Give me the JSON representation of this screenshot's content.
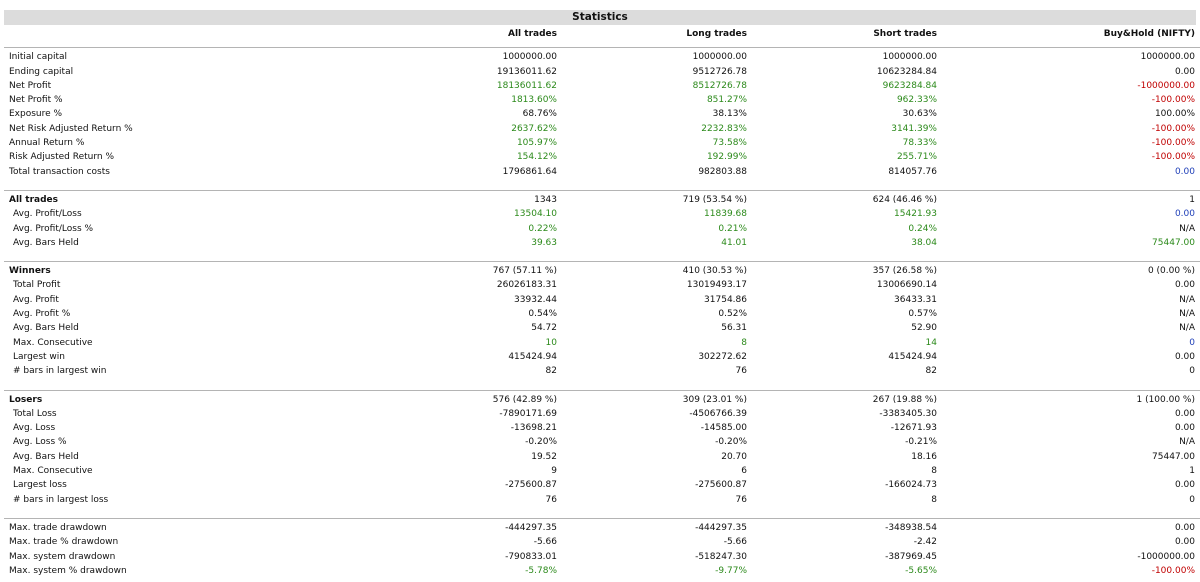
{
  "title": "Statistics",
  "columns": [
    "All trades",
    "Long trades",
    "Short trades",
    "Buy&Hold (NIFTY)"
  ],
  "colors": {
    "positive": "#2c8a1b",
    "negative": "#c00000",
    "neutral": "#1f3fb8",
    "default": "#111111"
  },
  "sections": [
    {
      "rows": [
        {
          "label": "Initial capital",
          "values": [
            "1000000.00",
            "1000000.00",
            "1000000.00",
            "1000000.00"
          ],
          "colors": [
            "",
            "",
            "",
            ""
          ]
        },
        {
          "label": "Ending capital",
          "values": [
            "19136011.62",
            "9512726.78",
            "10623284.84",
            "0.00"
          ],
          "colors": [
            "",
            "",
            "",
            ""
          ]
        },
        {
          "label": "Net Profit",
          "values": [
            "18136011.62",
            "8512726.78",
            "9623284.84",
            "-1000000.00"
          ],
          "colors": [
            "g",
            "g",
            "g",
            "r"
          ]
        },
        {
          "label": "Net Profit %",
          "values": [
            "1813.60%",
            "851.27%",
            "962.33%",
            "-100.00%"
          ],
          "colors": [
            "g",
            "g",
            "g",
            "r"
          ]
        },
        {
          "label": "Exposure %",
          "values": [
            "68.76%",
            "38.13%",
            "30.63%",
            "100.00%"
          ],
          "colors": [
            "",
            "",
            "",
            ""
          ]
        },
        {
          "label": "Net Risk Adjusted Return %",
          "values": [
            "2637.62%",
            "2232.83%",
            "3141.39%",
            "-100.00%"
          ],
          "colors": [
            "g",
            "g",
            "g",
            "r"
          ]
        },
        {
          "label": "Annual Return %",
          "values": [
            "105.97%",
            "73.58%",
            "78.33%",
            "-100.00%"
          ],
          "colors": [
            "g",
            "g",
            "g",
            "r"
          ]
        },
        {
          "label": "Risk Adjusted Return %",
          "values": [
            "154.12%",
            "192.99%",
            "255.71%",
            "-100.00%"
          ],
          "colors": [
            "g",
            "g",
            "g",
            "r"
          ]
        },
        {
          "label": "Total transaction costs",
          "values": [
            "1796861.64",
            "982803.88",
            "814057.76",
            "0.00"
          ],
          "colors": [
            "",
            "",
            "",
            "b"
          ]
        }
      ]
    },
    {
      "rows": [
        {
          "label": "All trades",
          "header": true,
          "values": [
            "1343",
            "719 (53.54 %)",
            "624 (46.46 %)",
            "1"
          ],
          "colors": [
            "",
            "",
            "",
            ""
          ]
        },
        {
          "label": "Avg. Profit/Loss",
          "values": [
            "13504.10",
            "11839.68",
            "15421.93",
            "0.00"
          ],
          "colors": [
            "g",
            "g",
            "g",
            "b"
          ]
        },
        {
          "label": "Avg. Profit/Loss %",
          "values": [
            "0.22%",
            "0.21%",
            "0.24%",
            "N/A"
          ],
          "colors": [
            "g",
            "g",
            "g",
            ""
          ]
        },
        {
          "label": "Avg. Bars Held",
          "values": [
            "39.63",
            "41.01",
            "38.04",
            "75447.00"
          ],
          "colors": [
            "g",
            "g",
            "g",
            "g"
          ]
        }
      ]
    },
    {
      "rows": [
        {
          "label": "Winners",
          "header": true,
          "values": [
            "767 (57.11 %)",
            "410 (30.53 %)",
            "357 (26.58 %)",
            "0 (0.00 %)"
          ],
          "colors": [
            "",
            "",
            "",
            ""
          ]
        },
        {
          "label": "Total Profit",
          "values": [
            "26026183.31",
            "13019493.17",
            "13006690.14",
            "0.00"
          ],
          "colors": [
            "",
            "",
            "",
            ""
          ]
        },
        {
          "label": "Avg. Profit",
          "values": [
            "33932.44",
            "31754.86",
            "36433.31",
            "N/A"
          ],
          "colors": [
            "",
            "",
            "",
            ""
          ]
        },
        {
          "label": "Avg. Profit %",
          "values": [
            "0.54%",
            "0.52%",
            "0.57%",
            "N/A"
          ],
          "colors": [
            "",
            "",
            "",
            ""
          ]
        },
        {
          "label": "Avg. Bars Held",
          "values": [
            "54.72",
            "56.31",
            "52.90",
            "N/A"
          ],
          "colors": [
            "",
            "",
            "",
            ""
          ]
        },
        {
          "label": "Max. Consecutive",
          "values": [
            "10",
            "8",
            "14",
            "0"
          ],
          "colors": [
            "g",
            "g",
            "g",
            "b"
          ]
        },
        {
          "label": "Largest win",
          "values": [
            "415424.94",
            "302272.62",
            "415424.94",
            "0.00"
          ],
          "colors": [
            "",
            "",
            "",
            ""
          ]
        },
        {
          "label": "# bars in largest win",
          "values": [
            "82",
            "76",
            "82",
            "0"
          ],
          "colors": [
            "",
            "",
            "",
            ""
          ]
        }
      ]
    },
    {
      "rows": [
        {
          "label": "Losers",
          "header": true,
          "values": [
            "576 (42.89 %)",
            "309 (23.01 %)",
            "267 (19.88 %)",
            "1 (100.00 %)"
          ],
          "colors": [
            "",
            "",
            "",
            ""
          ]
        },
        {
          "label": "Total Loss",
          "values": [
            "-7890171.69",
            "-4506766.39",
            "-3383405.30",
            "0.00"
          ],
          "colors": [
            "",
            "",
            "",
            ""
          ]
        },
        {
          "label": "Avg. Loss",
          "values": [
            "-13698.21",
            "-14585.00",
            "-12671.93",
            "0.00"
          ],
          "colors": [
            "",
            "",
            "",
            ""
          ]
        },
        {
          "label": "Avg. Loss %",
          "values": [
            "-0.20%",
            "-0.20%",
            "-0.21%",
            "N/A"
          ],
          "colors": [
            "",
            "",
            "",
            ""
          ]
        },
        {
          "label": "Avg. Bars Held",
          "values": [
            "19.52",
            "20.70",
            "18.16",
            "75447.00"
          ],
          "colors": [
            "",
            "",
            "",
            ""
          ]
        },
        {
          "label": "Max. Consecutive",
          "values": [
            "9",
            "6",
            "8",
            "1"
          ],
          "colors": [
            "",
            "",
            "",
            ""
          ]
        },
        {
          "label": "Largest loss",
          "values": [
            "-275600.87",
            "-275600.87",
            "-166024.73",
            "0.00"
          ],
          "colors": [
            "",
            "",
            "",
            ""
          ]
        },
        {
          "label": "# bars in largest loss",
          "values": [
            "76",
            "76",
            "8",
            "0"
          ],
          "colors": [
            "",
            "",
            "",
            ""
          ]
        }
      ]
    },
    {
      "rows": [
        {
          "label": "Max. trade drawdown",
          "values": [
            "-444297.35",
            "-444297.35",
            "-348938.54",
            "0.00"
          ],
          "colors": [
            "",
            "",
            "",
            ""
          ]
        },
        {
          "label": "Max. trade % drawdown",
          "values": [
            "-5.66",
            "-5.66",
            "-2.42",
            "0.00"
          ],
          "colors": [
            "",
            "",
            "",
            ""
          ]
        },
        {
          "label": "Max. system drawdown",
          "values": [
            "-790833.01",
            "-518247.30",
            "-387969.45",
            "-1000000.00"
          ],
          "colors": [
            "",
            "",
            "",
            ""
          ]
        },
        {
          "label": "Max. system % drawdown",
          "values": [
            "-5.78%",
            "-9.77%",
            "-5.65%",
            "-100.00%"
          ],
          "colors": [
            "g",
            "g",
            "g",
            "r"
          ]
        }
      ]
    }
  ]
}
